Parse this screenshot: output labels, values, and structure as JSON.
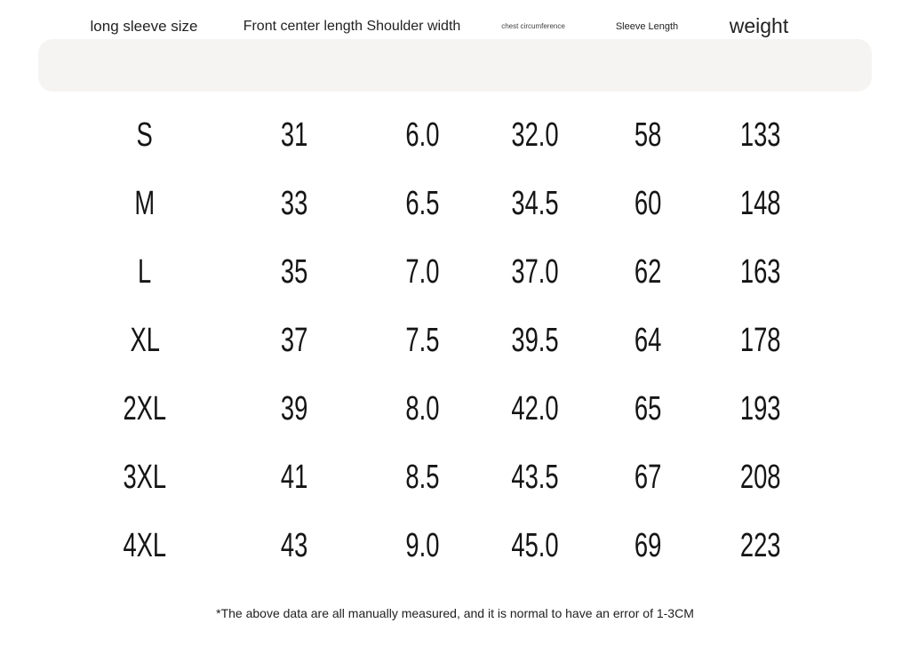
{
  "size_chart": {
    "headers": {
      "size": "long sleeve size",
      "front_center_length_shoulder_width": "Front center length Shoulder width",
      "chest_circumference": "chest circumference",
      "sleeve_length": "Sleeve Length",
      "weight": "weight"
    },
    "rows": [
      [
        "S",
        "31",
        "6.0",
        "32.0",
        "58",
        "133"
      ],
      [
        "M",
        "33",
        "6.5",
        "34.5",
        "60",
        "148"
      ],
      [
        "L",
        "35",
        "7.0",
        "37.0",
        "62",
        "163"
      ],
      [
        "XL",
        "37",
        "7.5",
        "39.5",
        "64",
        "178"
      ],
      [
        "2XL",
        "39",
        "8.0",
        "42.0",
        "65",
        "193"
      ],
      [
        "3XL",
        "41",
        "8.5",
        "43.5",
        "67",
        "208"
      ],
      [
        "4XL",
        "43",
        "9.0",
        "45.0",
        "69",
        "223"
      ]
    ],
    "footnote": "*The above data are all manually measured, and it is normal to have an error of 1-3CM",
    "colors": {
      "page_bg": "#ffffff",
      "header_bg": "#f5f4f2",
      "text": "#1b1b1b"
    }
  }
}
